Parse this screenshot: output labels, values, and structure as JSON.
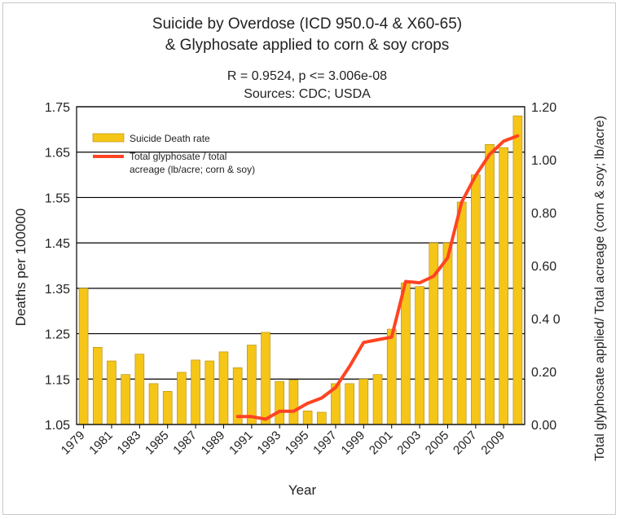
{
  "chart_data": {
    "type": "bar",
    "title_line1": "Suicide by Overdose (ICD 950.0-4 & X60-65)",
    "title_line2": "& Glyphosate applied to corn & soy crops",
    "subtitle_line1": "R = 0.9524, p <= 3.006e-08",
    "subtitle_line2": "Sources: CDC; USDA",
    "xlabel": "Year",
    "ylabel": "Deaths per 100000",
    "y2label": "Total glyphosate applied/ Total acreage (corn & soy; lb/acre)",
    "ylim": [
      1.05,
      1.75
    ],
    "y2lim": [
      0.0,
      1.2
    ],
    "yticks": [
      "1.05",
      "1.15",
      "1.25",
      "1.35",
      "1.45",
      "1.55",
      "1.65",
      "1.75"
    ],
    "y2ticks": [
      "0.00",
      "0.20",
      "0.4 0",
      "0.60",
      "0.80",
      "1.00",
      "1.20"
    ],
    "grid": "horizontal",
    "legend_position": "top-left",
    "xticklabels": [
      "1979",
      "1981",
      "1983",
      "1985",
      "1987",
      "1989",
      "1991",
      "1993",
      "1995",
      "1997",
      "1999",
      "2001",
      "2003",
      "2005",
      "2007",
      "2009"
    ],
    "categories": [
      1979,
      1980,
      1981,
      1982,
      1983,
      1984,
      1985,
      1986,
      1987,
      1988,
      1989,
      1990,
      1991,
      1992,
      1993,
      1994,
      1995,
      1996,
      1997,
      1998,
      1999,
      2000,
      2001,
      2002,
      2003,
      2004,
      2005,
      2006,
      2007,
      2008,
      2009,
      2010
    ],
    "series": [
      {
        "name": "Suicide Death rate",
        "type": "bar",
        "axis": "left",
        "color": "#f5c518",
        "values": [
          1.35,
          1.22,
          1.19,
          1.16,
          1.205,
          1.14,
          1.123,
          1.165,
          1.192,
          1.19,
          1.21,
          1.175,
          1.225,
          1.253,
          1.145,
          1.148,
          1.08,
          1.077,
          1.14,
          1.14,
          1.15,
          1.16,
          1.26,
          1.362,
          1.354,
          1.45,
          1.45,
          1.54,
          1.6,
          1.667,
          1.66,
          1.73
        ]
      },
      {
        "name": "Total glyphosate / total acreage (lb/acre; corn & soy)",
        "legend_line1": "Total glyphosate / total",
        "legend_line2": "acreage (lb/acre; corn & soy)",
        "type": "line",
        "axis": "right",
        "color": "#ff4422",
        "x": [
          1990,
          1991,
          1992,
          1993,
          1994,
          1995,
          1996,
          1997,
          1998,
          1999,
          2000,
          2001,
          2002,
          2003,
          2004,
          2005,
          2006,
          2007,
          2008,
          2009,
          2010
        ],
        "values": [
          0.03,
          0.03,
          0.02,
          0.05,
          0.05,
          0.08,
          0.1,
          0.14,
          0.22,
          0.31,
          0.32,
          0.33,
          0.54,
          0.535,
          0.56,
          0.63,
          0.84,
          0.94,
          1.02,
          1.07,
          1.09
        ]
      }
    ]
  }
}
